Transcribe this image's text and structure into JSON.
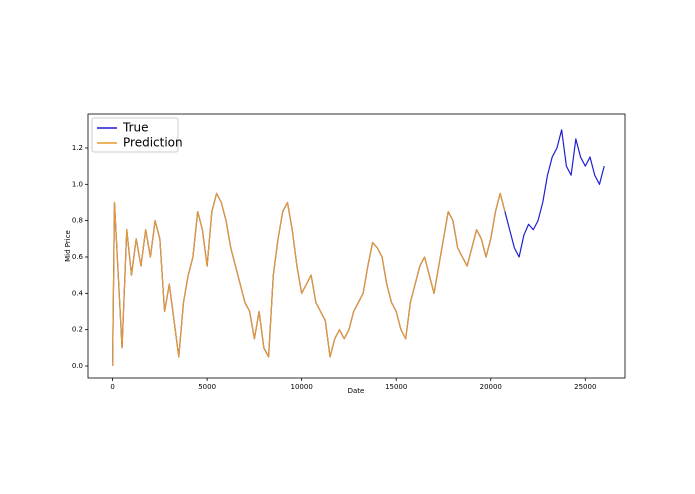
{
  "chart_data": {
    "type": "line",
    "xlabel": "Date",
    "ylabel": "Mid Price",
    "x": [
      0,
      100,
      250,
      500,
      750,
      1000,
      1250,
      1500,
      1750,
      2000,
      2250,
      2500,
      2750,
      3000,
      3250,
      3500,
      3750,
      4000,
      4250,
      4500,
      4750,
      5000,
      5250,
      5500,
      5750,
      6000,
      6250,
      6500,
      6750,
      7000,
      7250,
      7500,
      7750,
      8000,
      8250,
      8500,
      8750,
      9000,
      9250,
      9500,
      9750,
      10000,
      10250,
      10500,
      10750,
      11000,
      11250,
      11500,
      11750,
      12000,
      12250,
      12500,
      12750,
      13000,
      13250,
      13500,
      13750,
      14000,
      14250,
      14500,
      14750,
      15000,
      15250,
      15500,
      15750,
      16000,
      16250,
      16500,
      16750,
      17000,
      17250,
      17500,
      17750,
      18000,
      18250,
      18500,
      18750,
      19000,
      19250,
      19500,
      19750,
      20000,
      20250,
      20500,
      20750,
      21000,
      21250,
      21500,
      21750,
      22000,
      22250,
      22500,
      22750,
      23000,
      23250,
      23500,
      23750,
      24000,
      24250,
      24500,
      24750,
      25000,
      25250,
      25500,
      25750,
      26000
    ],
    "series": [
      {
        "name": "True",
        "color": "#1f1fd0",
        "values": [
          0.0,
          0.9,
          0.6,
          0.1,
          0.75,
          0.5,
          0.7,
          0.55,
          0.75,
          0.6,
          0.8,
          0.7,
          0.3,
          0.45,
          0.25,
          0.05,
          0.35,
          0.5,
          0.6,
          0.85,
          0.75,
          0.55,
          0.85,
          0.95,
          0.9,
          0.8,
          0.65,
          0.55,
          0.45,
          0.35,
          0.3,
          0.15,
          0.3,
          0.1,
          0.05,
          0.5,
          0.7,
          0.85,
          0.9,
          0.75,
          0.55,
          0.4,
          0.45,
          0.5,
          0.35,
          0.3,
          0.25,
          0.05,
          0.15,
          0.2,
          0.15,
          0.2,
          0.3,
          0.35,
          0.4,
          0.55,
          0.68,
          0.65,
          0.6,
          0.45,
          0.35,
          0.3,
          0.2,
          0.15,
          0.35,
          0.45,
          0.55,
          0.6,
          0.5,
          0.4,
          0.55,
          0.7,
          0.85,
          0.8,
          0.65,
          0.6,
          0.55,
          0.65,
          0.75,
          0.7,
          0.6,
          0.7,
          0.85,
          0.95,
          0.85,
          0.75,
          0.65,
          0.6,
          0.72,
          0.78,
          0.75,
          0.8,
          0.9,
          1.05,
          1.15,
          1.2,
          1.3,
          1.1,
          1.05,
          1.25,
          1.15,
          1.1,
          1.15,
          1.05,
          1.0,
          1.1
        ]
      },
      {
        "name": "Prediction",
        "color": "#e89a2c",
        "values": [
          0.0,
          0.9,
          0.6,
          0.1,
          0.75,
          0.5,
          0.7,
          0.55,
          0.75,
          0.6,
          0.8,
          0.7,
          0.3,
          0.45,
          0.25,
          0.05,
          0.35,
          0.5,
          0.6,
          0.85,
          0.75,
          0.55,
          0.85,
          0.95,
          0.9,
          0.8,
          0.65,
          0.55,
          0.45,
          0.35,
          0.3,
          0.15,
          0.3,
          0.1,
          0.05,
          0.5,
          0.7,
          0.85,
          0.9,
          0.75,
          0.55,
          0.4,
          0.45,
          0.5,
          0.35,
          0.3,
          0.25,
          0.05,
          0.15,
          0.2,
          0.15,
          0.2,
          0.3,
          0.35,
          0.4,
          0.55,
          0.68,
          0.65,
          0.6,
          0.45,
          0.35,
          0.3,
          0.2,
          0.15,
          0.35,
          0.45,
          0.55,
          0.6,
          0.5,
          0.4,
          0.55,
          0.7,
          0.85,
          0.8,
          0.65,
          0.6,
          0.55,
          0.65,
          0.75,
          0.7,
          0.6,
          0.7,
          0.85,
          0.95,
          0.85,
          null,
          null,
          null,
          null,
          null,
          null,
          null,
          null,
          null,
          null,
          null,
          null,
          null,
          null,
          null,
          null,
          null,
          null,
          null,
          null,
          null
        ]
      }
    ],
    "xlim": [
      -1300,
      27100
    ],
    "ylim": [
      -0.066,
      1.387
    ],
    "xticks": [
      0,
      5000,
      10000,
      15000,
      20000,
      25000
    ],
    "yticks": [
      {
        "value": 0,
        "label": "0.0"
      },
      0.2,
      0.4,
      0.6,
      0.8,
      {
        "value": 1,
        "label": "1.0"
      },
      1.2
    ],
    "legend": "upper left"
  }
}
